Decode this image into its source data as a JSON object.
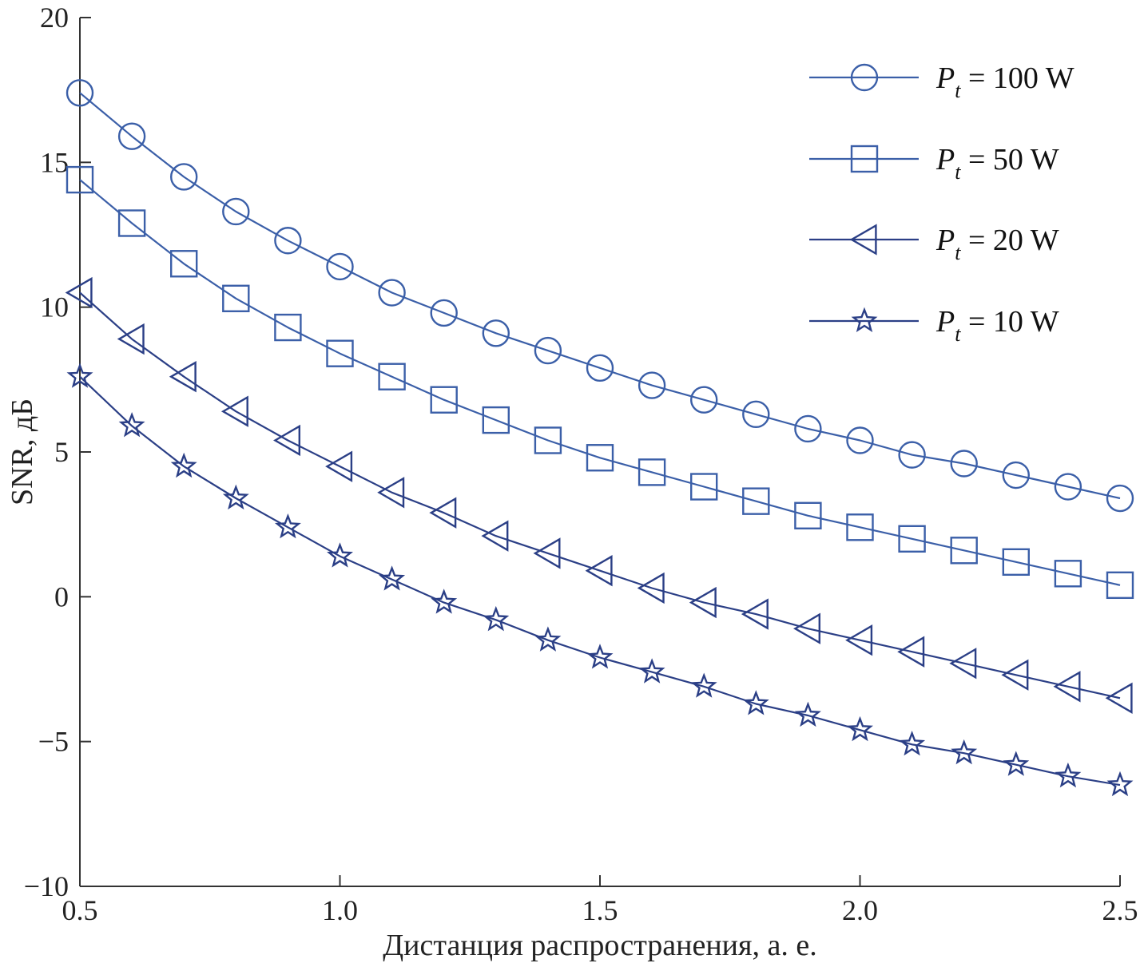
{
  "chart_data": {
    "type": "line",
    "title": "",
    "xlabel": "Дистанция распространения, а. е.",
    "ylabel": "SNR, дБ",
    "xlim": [
      0.5,
      2.5
    ],
    "ylim": [
      -10,
      20
    ],
    "xticks": [
      0.5,
      1.0,
      1.5,
      2.0,
      2.5
    ],
    "xtick_labels": [
      "0.5",
      "1.0",
      "1.5",
      "2.0",
      "2.5"
    ],
    "yticks": [
      -10,
      -5,
      0,
      5,
      10,
      15,
      20
    ],
    "ytick_labels": [
      "−10",
      "−5",
      "0",
      "5",
      "10",
      "15",
      "20"
    ],
    "grid": false,
    "legend_position": "top-right",
    "x": [
      0.5,
      0.6,
      0.7,
      0.8,
      0.9,
      1.0,
      1.1,
      1.2,
      1.3,
      1.4,
      1.5,
      1.6,
      1.7,
      1.8,
      1.9,
      2.0,
      2.1,
      2.2,
      2.3,
      2.4,
      2.5
    ],
    "series": [
      {
        "name": "P_t = 100 W",
        "legend_symbol": "P",
        "legend_sub": "t",
        "legend_value": " = 100 W",
        "marker": "circle",
        "color": "#3b5fa8",
        "values": [
          17.4,
          15.9,
          14.5,
          13.3,
          12.3,
          11.4,
          10.5,
          9.8,
          9.1,
          8.5,
          7.9,
          7.3,
          6.8,
          6.3,
          5.8,
          5.4,
          4.9,
          4.6,
          4.2,
          3.8,
          3.4
        ]
      },
      {
        "name": "P_t = 50 W",
        "legend_symbol": "P",
        "legend_sub": "t",
        "legend_value": " = 50 W",
        "marker": "square",
        "color": "#3b5fa8",
        "values": [
          14.4,
          12.9,
          11.5,
          10.3,
          9.3,
          8.4,
          7.6,
          6.8,
          6.1,
          5.4,
          4.8,
          4.3,
          3.8,
          3.3,
          2.8,
          2.4,
          2.0,
          1.6,
          1.2,
          0.8,
          0.4
        ]
      },
      {
        "name": "P_t = 20 W",
        "legend_symbol": "P",
        "legend_sub": "t",
        "legend_value": " = 20 W",
        "marker": "triangle-left",
        "color": "#2b3f86",
        "values": [
          10.5,
          8.9,
          7.6,
          6.4,
          5.4,
          4.5,
          3.6,
          2.9,
          2.1,
          1.5,
          0.9,
          0.3,
          -0.2,
          -0.6,
          -1.1,
          -1.5,
          -1.9,
          -2.3,
          -2.7,
          -3.1,
          -3.5
        ]
      },
      {
        "name": "P_t = 10 W",
        "legend_symbol": "P",
        "legend_sub": "t",
        "legend_value": " = 10 W",
        "marker": "star",
        "color": "#2b3f86",
        "values": [
          7.6,
          5.9,
          4.5,
          3.4,
          2.4,
          1.4,
          0.6,
          -0.2,
          -0.8,
          -1.5,
          -2.1,
          -2.6,
          -3.1,
          -3.7,
          -4.1,
          -4.6,
          -5.1,
          -5.4,
          -5.8,
          -6.2,
          -6.5
        ]
      }
    ]
  }
}
